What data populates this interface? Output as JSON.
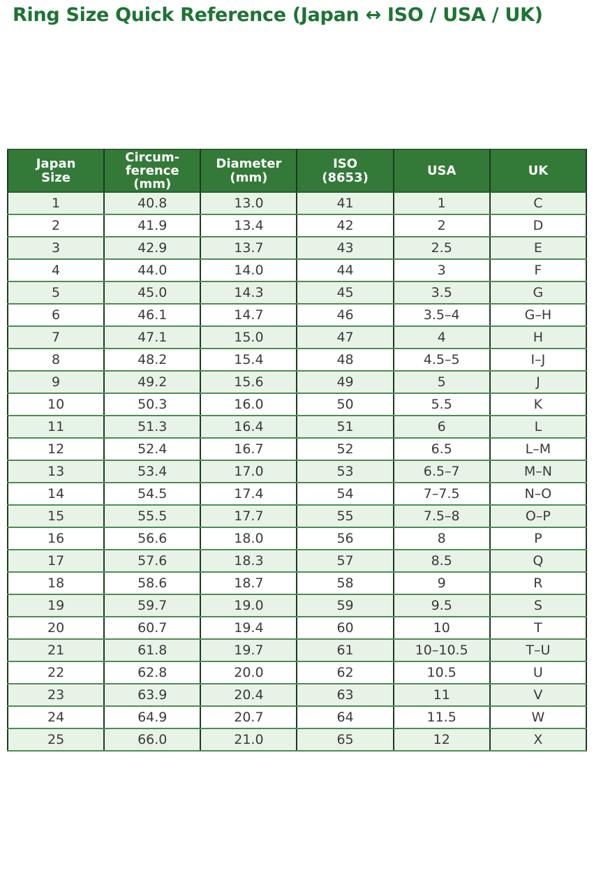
{
  "title": "Ring Size Quick Reference (Japan ↔ ISO / USA / UK)",
  "table": {
    "headers": [
      "Japan\nSize",
      "Circum-\nference\n(mm)",
      "Diameter\n(mm)",
      "ISO\n(8653)",
      "USA",
      "UK"
    ],
    "rows": [
      [
        "1",
        "40.8",
        "13.0",
        "41",
        "1",
        "C"
      ],
      [
        "2",
        "41.9",
        "13.4",
        "42",
        "2",
        "D"
      ],
      [
        "3",
        "42.9",
        "13.7",
        "43",
        "2.5",
        "E"
      ],
      [
        "4",
        "44.0",
        "14.0",
        "44",
        "3",
        "F"
      ],
      [
        "5",
        "45.0",
        "14.3",
        "45",
        "3.5",
        "G"
      ],
      [
        "6",
        "46.1",
        "14.7",
        "46",
        "3.5–4",
        "G–H"
      ],
      [
        "7",
        "47.1",
        "15.0",
        "47",
        "4",
        "H"
      ],
      [
        "8",
        "48.2",
        "15.4",
        "48",
        "4.5–5",
        "I–J"
      ],
      [
        "9",
        "49.2",
        "15.6",
        "49",
        "5",
        "J"
      ],
      [
        "10",
        "50.3",
        "16.0",
        "50",
        "5.5",
        "K"
      ],
      [
        "11",
        "51.3",
        "16.4",
        "51",
        "6",
        "L"
      ],
      [
        "12",
        "52.4",
        "16.7",
        "52",
        "6.5",
        "L–M"
      ],
      [
        "13",
        "53.4",
        "17.0",
        "53",
        "6.5–7",
        "M–N"
      ],
      [
        "14",
        "54.5",
        "17.4",
        "54",
        "7–7.5",
        "N–O"
      ],
      [
        "15",
        "55.5",
        "17.7",
        "55",
        "7.5–8",
        "O–P"
      ],
      [
        "16",
        "56.6",
        "18.0",
        "56",
        "8",
        "P"
      ],
      [
        "17",
        "57.6",
        "18.3",
        "57",
        "8.5",
        "Q"
      ],
      [
        "18",
        "58.6",
        "18.7",
        "58",
        "9",
        "R"
      ],
      [
        "19",
        "59.7",
        "19.0",
        "59",
        "9.5",
        "S"
      ],
      [
        "20",
        "60.7",
        "19.4",
        "60",
        "10",
        "T"
      ],
      [
        "21",
        "61.8",
        "19.7",
        "61",
        "10–10.5",
        "T–U"
      ],
      [
        "22",
        "62.8",
        "20.0",
        "62",
        "10.5",
        "U"
      ],
      [
        "23",
        "63.9",
        "20.4",
        "63",
        "11",
        "V"
      ],
      [
        "24",
        "64.9",
        "20.7",
        "64",
        "11.5",
        "W"
      ],
      [
        "25",
        "66.0",
        "21.0",
        "65",
        "12",
        "X"
      ]
    ]
  },
  "colors": {
    "title_text": "#1d7433",
    "header_bg": "#337a38",
    "header_text": "#ffffff",
    "row_alt_bg": "#e8f3e8",
    "row_bg": "#ffffff",
    "border_vertical": "#1c3a1f",
    "border_horizontal": "#4e8c52",
    "cell_text": "#3a3a3a"
  }
}
